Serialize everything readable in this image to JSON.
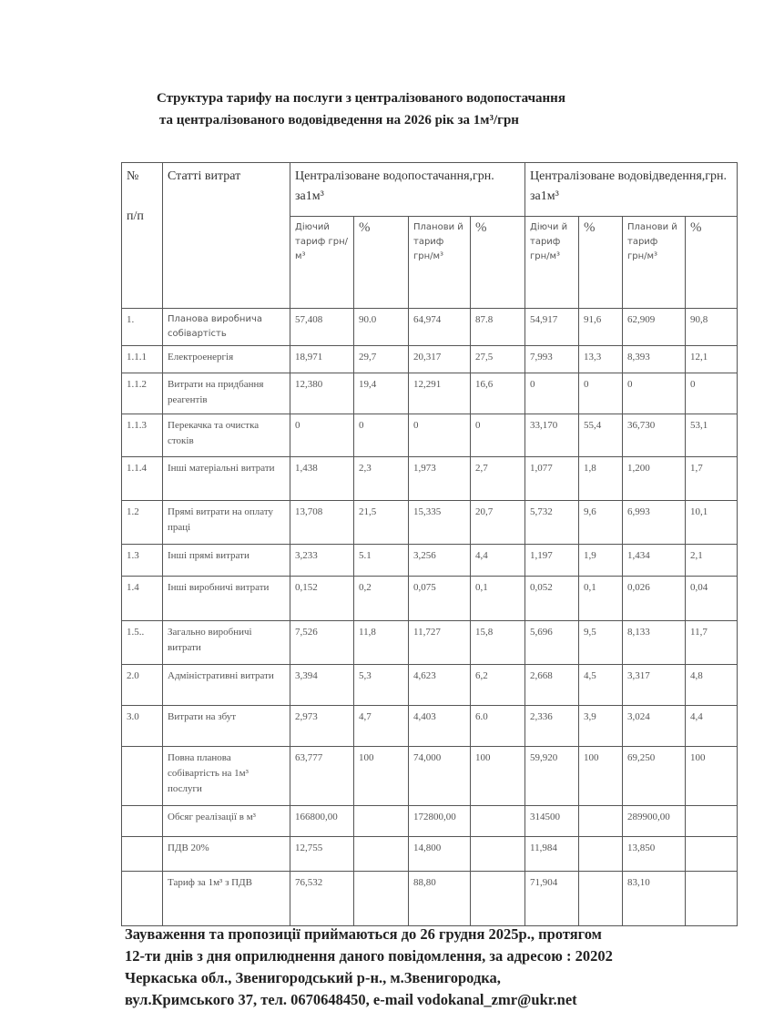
{
  "title": {
    "line1": "Структура  тарифу на послуги з централізованого водопостачання",
    "line2": "та централізованого водовідведення на 2026 рік за 1м³/грн"
  },
  "table": {
    "header": {
      "num": "№",
      "num2": "п/п",
      "item": "Статті  витрат",
      "water_supply": "Централізоване водопостачання,грн. за1м³",
      "water_disposal": "Централізоване водовідведення,грн. за1м³",
      "sub": [
        "Діючий тариф грн/м³",
        "%",
        "Планови й тариф грн/м³",
        "%",
        "Діючи й тариф грн/м³",
        "%",
        "Планови й тариф грн/м³",
        "%"
      ]
    },
    "rows": [
      {
        "num": "1.",
        "item": "Планова виробнича собівартість",
        "v": [
          "57,408",
          "90.0",
          "64,974",
          "87.8",
          "54,917",
          "91,6",
          "62,909",
          "90,8"
        ]
      },
      {
        "num": "1.1.1",
        "item": "Електроенергія",
        "v": [
          "18,971",
          "29,7",
          "20,317",
          "27,5",
          "7,993",
          "13,3",
          "8,393",
          "12,1"
        ]
      },
      {
        "num": "1.1.2",
        "item": "Витрати на придбання реагентів",
        "v": [
          "12,380",
          "19,4",
          "12,291",
          "16,6",
          "0",
          "0",
          "0",
          "0"
        ]
      },
      {
        "num": "1.1.3",
        "item": "Перекачка та очистка стоків",
        "v": [
          "0",
          "0",
          "0",
          "0",
          "33,170",
          "55,4",
          "36,730",
          "53,1"
        ]
      },
      {
        "num": "1.1.4",
        "item": "Інші матеріальні витрати",
        "v": [
          "1,438",
          "2,3",
          "1,973",
          "2,7",
          "1,077",
          "1,8",
          "1,200",
          "1,7"
        ]
      },
      {
        "num": "1.2",
        "item": "Прямі витрати на оплату праці",
        "v": [
          "13,708",
          "21,5",
          "15,335",
          "20,7",
          "5,732",
          "9,6",
          "6,993",
          "10,1"
        ]
      },
      {
        "num": "1.3",
        "item": "Інші прямі витрати",
        "v": [
          "3,233",
          "5.1",
          "3,256",
          "4,4",
          "1,197",
          "1,9",
          "1,434",
          "2,1"
        ]
      },
      {
        "num": "1.4",
        "item": "Інші виробничі витрати",
        "v": [
          "0,152",
          "0,2",
          "0,075",
          "0,1",
          "0,052",
          "0,1",
          "0,026",
          "0,04"
        ]
      },
      {
        "num": "1.5..",
        "item": "Загально виробничі витрати",
        "v": [
          "7,526",
          "11,8",
          "11,727",
          "15,8",
          "5,696",
          "9,5",
          "8,133",
          "11,7"
        ]
      },
      {
        "num": "2.0",
        "item": "Адміністративні витрати",
        "v": [
          "3,394",
          "5,3",
          "4,623",
          "6,2",
          "2,668",
          "4,5",
          "3,317",
          "4,8"
        ]
      },
      {
        "num": "3.0",
        "item": "Витрати на збут",
        "v": [
          "2,973",
          "4,7",
          "4,403",
          "6.0",
          "2,336",
          "3,9",
          "3,024",
          "4,4"
        ]
      },
      {
        "num": "",
        "item": "Повна планова собівартість на 1м³ послуги",
        "v": [
          "63,777",
          "100",
          "74,000",
          "100",
          "59,920",
          "100",
          "69,250",
          "100"
        ]
      },
      {
        "num": "",
        "item": "Обсяг реалізації в м³",
        "v": [
          "166800,00",
          "",
          "172800,00",
          "",
          "314500",
          "",
          "289900,00",
          ""
        ]
      },
      {
        "num": "",
        "item": "ПДВ 20%",
        "v": [
          "12,755",
          "",
          "14,800",
          "",
          "11,984",
          "",
          "13,850",
          ""
        ]
      },
      {
        "num": "",
        "item": "Тариф за 1м³ з ПДВ",
        "v": [
          "76,532",
          "",
          "88,80",
          "",
          "71,904",
          "",
          "83,10",
          ""
        ]
      }
    ]
  },
  "note": {
    "line1": "Зауваження та пропозиції приймаються  до 26  грудня 2025р.,  протягом",
    "line2": "12-ти днів з дня оприлюднення даного повідомлення, за адресою : 20202",
    "line3": "Черкаська обл., Звенигородський р-н.,  м.Звенигородка,",
    "line4": "вул.Кримського 37, тел. 0670648450, e-mail vodokanal_zmr@ukr.net"
  }
}
